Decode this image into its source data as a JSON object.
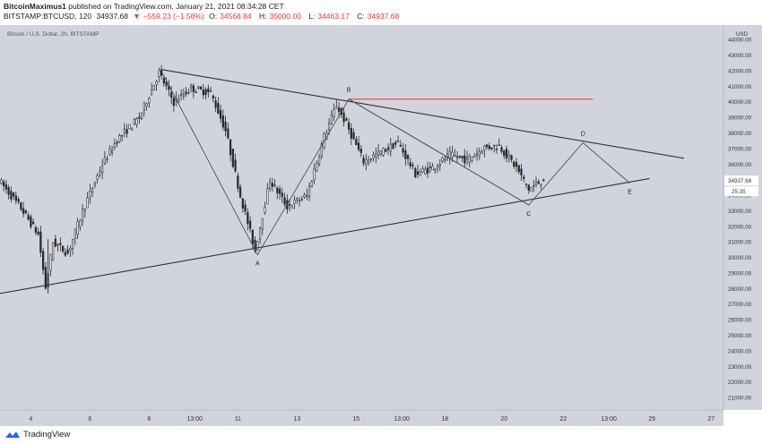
{
  "header": {
    "author": "BitcoinMaximus1",
    "published": "published on TradingView.com, January 21, 2021 08:34:28 CET",
    "symbol": "BITSTAMP:BTCUSD, 120",
    "last": "34937.68",
    "change_arrow": "▼",
    "change": "−559.23 (−1.58%)",
    "o_label": "O:",
    "o": "34568.84",
    "h_label": "H:",
    "h": "35000.00",
    "l_label": "L:",
    "l": "34463.17",
    "c_label": "C:",
    "c": "34937.68"
  },
  "footer": {
    "brand": "TradingView",
    "brand_icon": "tradingview-logo-icon"
  },
  "colors": {
    "chart_bg": "#d1d4dc",
    "candle": "#2a2a2a",
    "trendline": "#333333",
    "resistance": "#e53935",
    "price_tag_bg": "#ffffff"
  },
  "chart_data": {
    "type": "line",
    "title": "Bitcoin / U.S. Dollar, 2h, BITSTAMP",
    "xlabel": "",
    "ylabel": "",
    "currency": "USD",
    "ylim": [
      20600,
      44700
    ],
    "x_ticks": [
      "4",
      "6",
      "8",
      "13:00",
      "11",
      "13",
      "15",
      "13:00",
      "18",
      "20",
      "22",
      "13:00",
      "25",
      "27"
    ],
    "y_ticks": [
      21000,
      22000,
      23000,
      24000,
      25000,
      26000,
      27000,
      28000,
      29000,
      30000,
      31000,
      32000,
      33000,
      34000,
      35000,
      36000,
      37000,
      38000,
      39000,
      40000,
      41000,
      42000,
      43000,
      44000
    ],
    "price_path": [
      {
        "x": "2021-01-03 00:00",
        "y": 35000
      },
      {
        "x": "2021-01-03 18:00",
        "y": 33200
      },
      {
        "x": "2021-01-04 08:00",
        "y": 31500
      },
      {
        "x": "2021-01-04 14:00",
        "y": 28100
      },
      {
        "x": "2021-01-04 20:00",
        "y": 31000
      },
      {
        "x": "2021-01-05 08:00",
        "y": 30300
      },
      {
        "x": "2021-01-05 20:00",
        "y": 33000
      },
      {
        "x": "2021-01-06 12:00",
        "y": 36000
      },
      {
        "x": "2021-01-07 00:00",
        "y": 37600
      },
      {
        "x": "2021-01-07 18:00",
        "y": 39000
      },
      {
        "x": "2021-01-08 10:00",
        "y": 41900
      },
      {
        "x": "2021-01-08 22:00",
        "y": 40000
      },
      {
        "x": "2021-01-09 12:00",
        "y": 40900
      },
      {
        "x": "2021-01-10 04:00",
        "y": 40600
      },
      {
        "x": "2021-01-10 16:00",
        "y": 38200
      },
      {
        "x": "2021-01-11 04:00",
        "y": 34000
      },
      {
        "x": "2021-01-11 16:00",
        "y": 30500
      },
      {
        "x": "2021-01-12 04:00",
        "y": 35000
      },
      {
        "x": "2021-01-12 18:00",
        "y": 33300
      },
      {
        "x": "2021-01-13 10:00",
        "y": 34000
      },
      {
        "x": "2021-01-14 00:00",
        "y": 37800
      },
      {
        "x": "2021-01-14 10:00",
        "y": 39800
      },
      {
        "x": "2021-01-14 18:00",
        "y": 38600
      },
      {
        "x": "2021-01-15 08:00",
        "y": 36200
      },
      {
        "x": "2021-01-15 22:00",
        "y": 36800
      },
      {
        "x": "2021-01-16 12:00",
        "y": 37400
      },
      {
        "x": "2021-01-17 02:00",
        "y": 35400
      },
      {
        "x": "2021-01-17 16:00",
        "y": 35800
      },
      {
        "x": "2021-01-18 06:00",
        "y": 36600
      },
      {
        "x": "2021-01-18 20:00",
        "y": 36300
      },
      {
        "x": "2021-01-19 10:00",
        "y": 37100
      },
      {
        "x": "2021-01-19 22:00",
        "y": 37200
      },
      {
        "x": "2021-01-20 12:00",
        "y": 35800
      },
      {
        "x": "2021-01-20 22:00",
        "y": 34400
      },
      {
        "x": "2021-01-21 08:00",
        "y": 34937.68
      }
    ],
    "price_label": "34937.68",
    "countdown": "25:35",
    "lower_trendline": [
      {
        "x": "2021-01-02 22:00",
        "y": 27700
      },
      {
        "x": "2021-01-24 22:00",
        "y": 35100
      }
    ],
    "upper_trendline": [
      {
        "x": "2021-01-08 10:00",
        "y": 42100
      },
      {
        "x": "2021-01-26 02:00",
        "y": 36400
      }
    ],
    "resistance_line": [
      {
        "x": "2021-01-14 18:00",
        "y": 40200
      },
      {
        "x": "2021-01-23 00:00",
        "y": 40200
      }
    ],
    "wave_points": [
      {
        "label": "A",
        "x": "2021-01-11 16:00",
        "y": 30200
      },
      {
        "label": "B",
        "x": "2021-01-14 18:00",
        "y": 40200
      },
      {
        "label": "C",
        "x": "2021-01-20 20:00",
        "y": 33400
      },
      {
        "label": "D",
        "x": "2021-01-22 16:00",
        "y": 37400
      },
      {
        "label": "E",
        "x": "2021-01-24 06:00",
        "y": 34800
      }
    ],
    "abcde_path": [
      {
        "x": "2021-01-08 10:00",
        "y": 42000
      },
      {
        "x": "2021-01-11 16:00",
        "y": 30200
      },
      {
        "x": "2021-01-14 18:00",
        "y": 40200
      },
      {
        "x": "2021-01-20 20:00",
        "y": 33400
      },
      {
        "x": "2021-01-22 16:00",
        "y": 37400
      },
      {
        "x": "2021-01-24 06:00",
        "y": 34800
      }
    ],
    "xlim_dates": [
      "2021-01-02 23:00",
      "2021-01-27 10:00"
    ],
    "grid": false
  }
}
